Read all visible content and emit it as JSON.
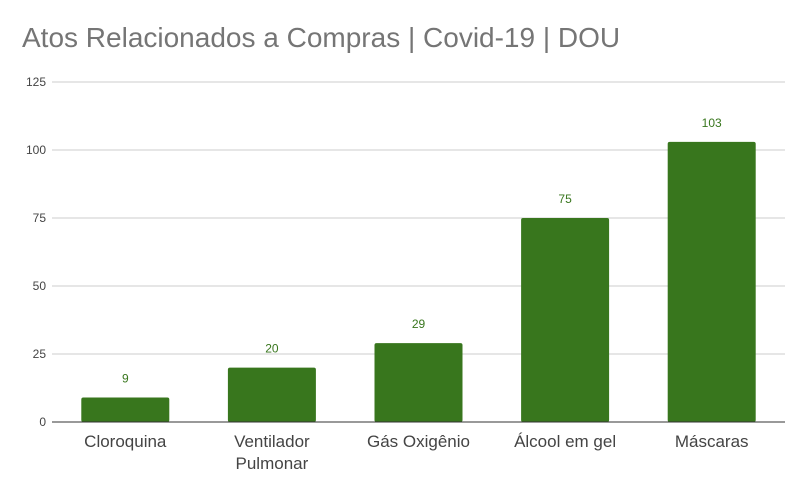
{
  "chart_data": {
    "type": "bar",
    "title": "Atos Relacionados a Compras | Covid-19 | DOU",
    "xlabel": "",
    "ylabel": "",
    "categories": [
      [
        "Cloroquina"
      ],
      [
        "Ventilador",
        "Pulmonar"
      ],
      [
        "Gás Oxigênio"
      ],
      [
        "Álcool em gel"
      ],
      [
        "Máscaras"
      ]
    ],
    "values": [
      9,
      20,
      29,
      75,
      103
    ],
    "ylim": [
      0,
      125
    ],
    "yticks": [
      0,
      25,
      50,
      75,
      100,
      125
    ],
    "grid": true,
    "legend": "none",
    "bar_color": "#38761d",
    "label_color": "#38761d"
  }
}
